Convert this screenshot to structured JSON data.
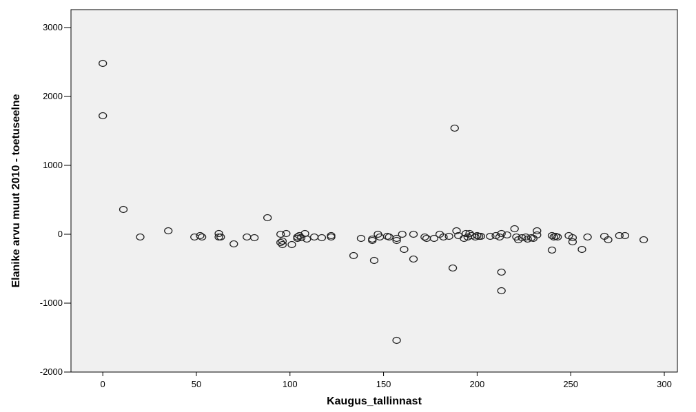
{
  "chart_data": {
    "type": "scatter",
    "title": "",
    "xlabel": "Kaugus_tallinnast",
    "ylabel": "Elanike arvu muut 2010 - toetuseelne",
    "xlim": [
      -17,
      307
    ],
    "ylim": [
      -2000,
      3260
    ],
    "x_ticks": [
      0,
      50,
      100,
      150,
      200,
      250,
      300
    ],
    "y_ticks": [
      -2000,
      -1000,
      0,
      1000,
      2000,
      3000
    ],
    "grid": false,
    "legend": "none",
    "marker": "hollow-circle",
    "points": [
      [
        0,
        2480
      ],
      [
        0,
        1720
      ],
      [
        11,
        360
      ],
      [
        20,
        -40
      ],
      [
        35,
        50
      ],
      [
        49,
        -40
      ],
      [
        52,
        -20
      ],
      [
        53,
        -40
      ],
      [
        62,
        10
      ],
      [
        62,
        -40
      ],
      [
        63,
        -40
      ],
      [
        70,
        -140
      ],
      [
        77,
        -40
      ],
      [
        81,
        -50
      ],
      [
        88,
        240
      ],
      [
        95,
        0
      ],
      [
        95,
        -120
      ],
      [
        96,
        -100
      ],
      [
        96,
        -150
      ],
      [
        98,
        10
      ],
      [
        101,
        -150
      ],
      [
        104,
        -40
      ],
      [
        104,
        -60
      ],
      [
        105,
        -20
      ],
      [
        106,
        -50
      ],
      [
        108,
        10
      ],
      [
        109,
        -70
      ],
      [
        113,
        -40
      ],
      [
        117,
        -50
      ],
      [
        122,
        -20
      ],
      [
        122,
        -40
      ],
      [
        134,
        -310
      ],
      [
        138,
        -60
      ],
      [
        144,
        -70
      ],
      [
        144,
        -90
      ],
      [
        145,
        -380
      ],
      [
        147,
        0
      ],
      [
        148,
        -40
      ],
      [
        152,
        -30
      ],
      [
        153,
        -40
      ],
      [
        157,
        -1540
      ],
      [
        157,
        -60
      ],
      [
        157,
        -90
      ],
      [
        160,
        0
      ],
      [
        161,
        -220
      ],
      [
        166,
        -360
      ],
      [
        166,
        0
      ],
      [
        172,
        -40
      ],
      [
        173,
        -60
      ],
      [
        177,
        -60
      ],
      [
        180,
        0
      ],
      [
        182,
        -40
      ],
      [
        185,
        -30
      ],
      [
        187,
        -490
      ],
      [
        188,
        1540
      ],
      [
        189,
        50
      ],
      [
        190,
        -20
      ],
      [
        193,
        -60
      ],
      [
        194,
        10
      ],
      [
        195,
        -40
      ],
      [
        196,
        10
      ],
      [
        197,
        -20
      ],
      [
        199,
        -40
      ],
      [
        200,
        -20
      ],
      [
        201,
        -30
      ],
      [
        202,
        -30
      ],
      [
        207,
        -30
      ],
      [
        210,
        -20
      ],
      [
        212,
        -40
      ],
      [
        213,
        -550
      ],
      [
        213,
        -820
      ],
      [
        213,
        10
      ],
      [
        216,
        -10
      ],
      [
        220,
        80
      ],
      [
        221,
        -40
      ],
      [
        222,
        -80
      ],
      [
        224,
        -50
      ],
      [
        226,
        -40
      ],
      [
        227,
        -70
      ],
      [
        229,
        -50
      ],
      [
        230,
        -60
      ],
      [
        232,
        -10
      ],
      [
        232,
        50
      ],
      [
        240,
        -230
      ],
      [
        240,
        -20
      ],
      [
        241,
        -40
      ],
      [
        242,
        -30
      ],
      [
        243,
        -40
      ],
      [
        249,
        -20
      ],
      [
        251,
        -50
      ],
      [
        251,
        -110
      ],
      [
        256,
        -220
      ],
      [
        259,
        -40
      ],
      [
        268,
        -30
      ],
      [
        270,
        -80
      ],
      [
        276,
        -20
      ],
      [
        279,
        -20
      ],
      [
        289,
        -80
      ]
    ]
  }
}
